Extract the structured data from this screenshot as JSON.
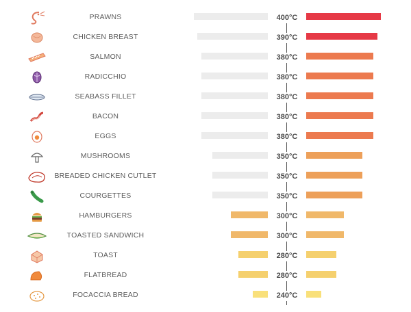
{
  "chart_data": {
    "type": "bar",
    "categories": [
      "PRAWNS",
      "CHICKEN BREAST",
      "SALMON",
      "RADICCHIO",
      "SEABASS FILLET",
      "BACON",
      "EGGS",
      "MUSHROOMS",
      "BREADED CHICKEN CUTLET",
      "COURGETTES",
      "HAMBURGERS",
      "TOASTED SANDWICH",
      "TOAST",
      "FLATBREAD",
      "FOCACCIA BREAD"
    ],
    "values": [
      400,
      390,
      380,
      380,
      380,
      380,
      380,
      350,
      350,
      350,
      300,
      300,
      280,
      280,
      240
    ],
    "unit": "°C",
    "value_labels": [
      "400°C",
      "390°C",
      "380°C",
      "380°C",
      "380°C",
      "380°C",
      "380°C",
      "350°C",
      "350°C",
      "350°C",
      "300°C",
      "300°C",
      "280°C",
      "280°C",
      "240°C"
    ],
    "icons": [
      "prawn-icon",
      "chicken-breast-icon",
      "salmon-icon",
      "radicchio-icon",
      "seabass-fillet-icon",
      "bacon-icon",
      "egg-icon",
      "mushroom-icon",
      "breaded-cutlet-icon",
      "courgette-icon",
      "hamburger-icon",
      "toasted-sandwich-icon",
      "toast-icon",
      "flatbread-icon",
      "focaccia-icon"
    ],
    "colors": {
      "400": "#e63946",
      "390": "#e63946",
      "380": "#ec7a4f",
      "350": "#eda05a",
      "300": "#f0b86a",
      "280": "#f5d06e",
      "240": "#f9e07a",
      "left_gray": "#ececec",
      "icon": "#e07a5f"
    },
    "xlim": [
      200,
      410
    ],
    "grid": false
  }
}
